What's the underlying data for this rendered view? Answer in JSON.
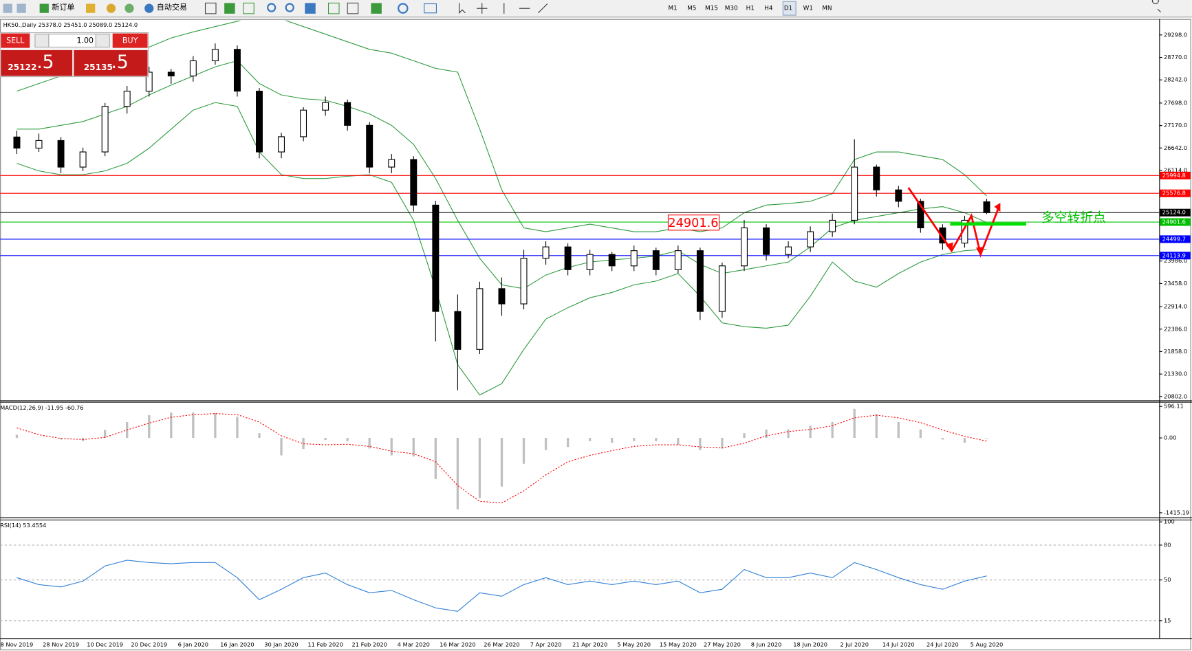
{
  "ui": {
    "toolbar": {
      "new_order": "新订单",
      "auto_trading": "自动交易",
      "timeframes": [
        "M1",
        "M5",
        "M15",
        "M30",
        "H1",
        "H4",
        "D1",
        "W1",
        "MN"
      ]
    },
    "trade_panel": {
      "sell": "SELL",
      "buy": "BUY",
      "lot": "1.00",
      "bid_main": "25122",
      "bid_frac": ".5",
      "ask_main": "25135",
      "ask_frac": ".5"
    }
  },
  "chart_data": [
    {
      "type": "candlestick",
      "title": "HK50.,Daily  25378.0 25451.0 25089.0 25124.0",
      "categories": [
        "8 Nov 2019",
        null,
        "28 Nov 2019",
        null,
        "10 Dec 2019",
        null,
        "20 Dec 2019",
        null,
        "6 Jan 2020",
        null,
        "16 Jan 2020",
        null,
        "30 Jan 2020",
        null,
        "11 Feb 2020",
        null,
        "21 Feb 2020",
        null,
        "4 Mar 2020",
        null,
        "16 Mar 2020",
        null,
        "26 Mar 2020",
        null,
        "7 Apr 2020",
        null,
        "21 Apr 2020",
        null,
        "5 May 2020",
        null,
        "15 May 2020",
        null,
        "27 May 2020",
        null,
        "8 Jun 2020",
        null,
        "18 Jun 2020",
        null,
        "2 Jul 2020",
        null,
        "14 Jul 2020",
        null,
        "24 Jul 2020",
        null,
        "5 Aug 2020"
      ],
      "open": [
        26900,
        26639,
        26817,
        26193,
        26549,
        27620,
        27977,
        28423,
        28334,
        28691,
        28959,
        27977,
        26549,
        26906,
        27531,
        27710,
        27174,
        26193,
        26371,
        25300,
        22801,
        21909,
        23337,
        22979,
        24051,
        24318,
        23783,
        24140,
        23872,
        24229,
        23783,
        24229,
        22801,
        23872,
        24765,
        24140,
        24318,
        24675,
        24943,
        26193,
        25657,
        25389,
        24765,
        24408,
        25378
      ],
      "high": [
        27050,
        26980,
        26900,
        26650,
        27700,
        28100,
        28550,
        28500,
        28800,
        29100,
        29050,
        28050,
        27000,
        27600,
        27850,
        27780,
        27250,
        26500,
        26450,
        25400,
        23200,
        23500,
        23600,
        24250,
        24450,
        24400,
        24250,
        24200,
        24350,
        24300,
        24350,
        24300,
        23950,
        24950,
        24850,
        24450,
        24800,
        25100,
        26850,
        26250,
        25750,
        25450,
        24850,
        25050,
        25451
      ],
      "low": [
        26500,
        26550,
        26050,
        26100,
        26450,
        27450,
        27850,
        28150,
        28200,
        28600,
        27850,
        26400,
        26400,
        26800,
        27400,
        27050,
        26050,
        26050,
        25150,
        22100,
        20950,
        21800,
        22700,
        22850,
        23900,
        23650,
        23650,
        23750,
        23750,
        23650,
        23700,
        22600,
        22650,
        23750,
        24000,
        24050,
        24200,
        24550,
        24850,
        25500,
        25250,
        24650,
        24250,
        24300,
        25089
      ],
      "close": [
        26639,
        26817,
        26193,
        26549,
        27620,
        27977,
        28423,
        28334,
        28691,
        28959,
        27977,
        26549,
        26906,
        27531,
        27710,
        27174,
        26193,
        26371,
        25300,
        22801,
        21909,
        23337,
        22979,
        24051,
        24318,
        23783,
        24140,
        23872,
        24229,
        23783,
        24229,
        22801,
        23872,
        24765,
        24140,
        24318,
        24675,
        24943,
        26193,
        25657,
        25389,
        24765,
        24408,
        24943,
        25124
      ],
      "bull_color": "#ffffff",
      "bear_color": "#000000",
      "bands": {
        "color": "#2e9b3e",
        "upper": [
          27977,
          28156,
          28334,
          28423,
          28602,
          28780,
          29012,
          29227,
          29369,
          29494,
          29619,
          29762,
          29673,
          29494,
          29316,
          29137,
          28959,
          28870,
          28691,
          28513,
          28423,
          27085,
          25657,
          24764,
          24675,
          24764,
          24853,
          24764,
          24675,
          24675,
          24764,
          24675,
          24764,
          25121,
          25300,
          25335,
          25389,
          25567,
          26371,
          26549,
          26549,
          26460,
          26371,
          26014,
          25514
        ],
        "middle": [
          27085,
          27085,
          27174,
          27263,
          27442,
          27620,
          27888,
          28120,
          28334,
          28548,
          28691,
          28156,
          27888,
          27799,
          27763,
          27620,
          27442,
          27174,
          26728,
          25924,
          24943,
          24050,
          23426,
          23336,
          23657,
          23836,
          23961,
          24015,
          24050,
          24104,
          24229,
          23907,
          23693,
          23782,
          23872,
          23961,
          24318,
          24764,
          24943,
          25032,
          25121,
          25210,
          25264,
          25121,
          24889
        ],
        "lower": [
          26281,
          26103,
          26014,
          26014,
          26103,
          26281,
          26638,
          27085,
          27531,
          27710,
          27620,
          26549,
          26014,
          25924,
          25924,
          25978,
          26014,
          25835,
          24943,
          23336,
          21551,
          20837,
          21105,
          21908,
          22622,
          22890,
          23122,
          23247,
          23426,
          23515,
          23693,
          23158,
          22533,
          22444,
          22408,
          22479,
          23158,
          23961,
          23515,
          23372,
          23693,
          23961,
          24139,
          24229,
          24264
        ]
      },
      "hlines": [
        {
          "value": 25994.8,
          "color": "#ff0000"
        },
        {
          "value": 25576.8,
          "color": "#ff0000"
        },
        {
          "value": 25124.0,
          "label": "25124.0",
          "color": "#000000"
        },
        {
          "value": 24901.6,
          "color": "#00c000"
        },
        {
          "value": 24499.7,
          "color": "#0000ff"
        },
        {
          "value": 24113.9,
          "color": "#0000ff"
        }
      ],
      "annotations": [
        "24901.6",
        "多空转折点"
      ],
      "ylim": [
        20713,
        29637
      ],
      "yticks": [
        {
          "value": 29298,
          "label": "29298.0"
        },
        {
          "value": 28770,
          "label": "28770.0"
        },
        {
          "value": 28242,
          "label": "28242.0"
        },
        {
          "value": 27698,
          "label": "27698.0"
        },
        {
          "value": 27170,
          "label": "27170.0"
        },
        {
          "value": 26642,
          "label": "26642.0"
        },
        {
          "value": 26114,
          "label": "26114.0"
        },
        {
          "value": 23986,
          "label": "23986.0"
        },
        {
          "value": 23458,
          "label": "23458.0"
        },
        {
          "value": 22914,
          "label": "22914.0"
        },
        {
          "value": 22386,
          "label": "22386.0"
        },
        {
          "value": 21858,
          "label": "21858.0"
        },
        {
          "value": 21330,
          "label": "21330.0"
        },
        {
          "value": 20802,
          "label": "20802.0"
        }
      ]
    },
    {
      "type": "macd",
      "title": "MACD(12,26,9) -11.95 -60.76",
      "color": "#c0c0c0",
      "signal_color": "#ff0000",
      "values": [
        60,
        0,
        -30,
        -60,
        150,
        300,
        430,
        480,
        480,
        470,
        400,
        90,
        -330,
        -210,
        -40,
        -60,
        -200,
        -330,
        -350,
        -780,
        -1350,
        -1140,
        -920,
        -490,
        -230,
        -170,
        -60,
        -90,
        -60,
        -60,
        -130,
        -230,
        -200,
        90,
        160,
        160,
        230,
        300,
        550,
        450,
        300,
        160,
        -30,
        -90,
        -11.95
      ],
      "signal": [
        190,
        60,
        -10,
        -30,
        10,
        150,
        280,
        390,
        440,
        460,
        440,
        300,
        40,
        -110,
        -130,
        -120,
        -160,
        -250,
        -300,
        -450,
        -900,
        -1200,
        -1230,
        -1000,
        -700,
        -450,
        -330,
        -240,
        -160,
        -130,
        -130,
        -170,
        -190,
        -100,
        40,
        120,
        160,
        230,
        380,
        430,
        380,
        290,
        150,
        30,
        -60.76
      ],
      "ylim": [
        -1501,
        668
      ],
      "yticks": [
        596.11,
        {
          "value": 0,
          "label": "0.00"
        },
        -1415.19
      ]
    },
    {
      "type": "line",
      "title": "RSI(14) 53.4554",
      "color": "#2f7fd8",
      "level_lines": true,
      "values": [
        52,
        46,
        44,
        49,
        62,
        67,
        65,
        64,
        65,
        65,
        52,
        33,
        42,
        52,
        56,
        46,
        39,
        41,
        33,
        26,
        23,
        39,
        36,
        46,
        52,
        46,
        49,
        46,
        49,
        46,
        49,
        39,
        42,
        59,
        52,
        52,
        56,
        52,
        65,
        59,
        52,
        46,
        42,
        49,
        53.4554
      ],
      "ylim": [
        0,
        100
      ],
      "yticks": [
        100,
        80,
        50,
        15
      ]
    }
  ]
}
